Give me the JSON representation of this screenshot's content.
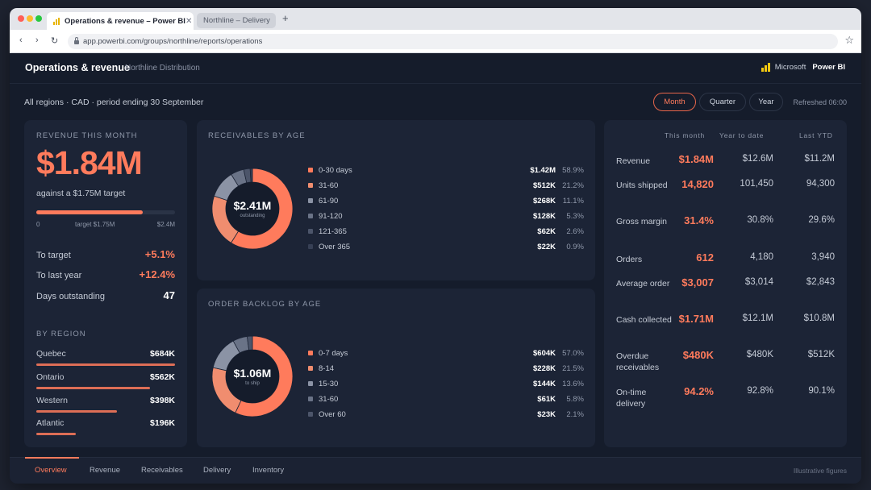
{
  "browser": {
    "tabs": [
      {
        "label": "Operations & revenue – Power BI",
        "active": true
      },
      {
        "label": "Northline – Delivery",
        "active": false
      }
    ],
    "new_tab": "+",
    "url": "app.powerbi.com/groups/northline/reports/operations"
  },
  "header": {
    "title": "Operations & revenue",
    "subtitle": "Northline Distribution",
    "brand_microsoft": "Microsoft",
    "brand_product": "Power BI"
  },
  "filters": {
    "context": "All regions · CAD · period ending 30 September",
    "periods": [
      "Month",
      "Quarter",
      "Year"
    ],
    "selected_period": "Month",
    "refreshed": "Refreshed 06:00"
  },
  "revenue_card": {
    "label": "Revenue this month",
    "value": "$1.84M",
    "target_text": "against a $1.75M target",
    "progress_fraction": 0.767,
    "scale_min": "0",
    "scale_target": "target $1.75M",
    "scale_max": "$2.4M",
    "stats": [
      {
        "label": "To target",
        "value": "+5.1%"
      },
      {
        "label": "To last year",
        "value": "+12.4%"
      },
      {
        "label": "Days outstanding",
        "value": "47"
      }
    ],
    "region_label": "By region",
    "regions": [
      {
        "name": "Quebec",
        "value": "$684K",
        "amount": 684
      },
      {
        "name": "Ontario",
        "value": "$562K",
        "amount": 562
      },
      {
        "name": "Western",
        "value": "$398K",
        "amount": 398
      },
      {
        "name": "Atlantic",
        "value": "$196K",
        "amount": 196
      }
    ]
  },
  "receivables": {
    "label": "Receivables by age",
    "center_value": "$2.41M",
    "center_caption": "outstanding",
    "rows": [
      {
        "label": "0-30 days",
        "amount": "$1.42M",
        "pct": "58.9%",
        "share": 58.9,
        "color": "#ff7b5c"
      },
      {
        "label": "31-60",
        "amount": "$512K",
        "pct": "21.2%",
        "share": 21.2,
        "color": "#f08d6f"
      },
      {
        "label": "61-90",
        "amount": "$268K",
        "pct": "11.1%",
        "share": 11.1,
        "color": "#8b93a5"
      },
      {
        "label": "91-120",
        "amount": "$128K",
        "pct": "5.3%",
        "share": 5.3,
        "color": "#6a7387"
      },
      {
        "label": "121-365",
        "amount": "$62K",
        "pct": "2.6%",
        "share": 2.6,
        "color": "#4c556a"
      },
      {
        "label": "Over 365",
        "amount": "$22K",
        "pct": "0.9%",
        "share": 0.9,
        "color": "#374055"
      }
    ]
  },
  "backlog": {
    "label": "Order backlog by age",
    "center_value": "$1.06M",
    "center_caption": "to ship",
    "rows": [
      {
        "label": "0-7 days",
        "amount": "$604K",
        "pct": "57.0%",
        "share": 57.0,
        "color": "#ff7b5c"
      },
      {
        "label": "8-14",
        "amount": "$228K",
        "pct": "21.5%",
        "share": 21.5,
        "color": "#f08d6f"
      },
      {
        "label": "15-30",
        "amount": "$144K",
        "pct": "13.6%",
        "share": 13.6,
        "color": "#8b93a5"
      },
      {
        "label": "31-60",
        "amount": "$61K",
        "pct": "5.8%",
        "share": 5.8,
        "color": "#6a7387"
      },
      {
        "label": "Over 60",
        "amount": "$23K",
        "pct": "2.1%",
        "share": 2.1,
        "color": "#4c556a"
      }
    ]
  },
  "comparison": {
    "headers": [
      "This month",
      "Year to date",
      "Last YTD"
    ],
    "rows": [
      {
        "label": "Revenue",
        "cur": "$1.84M",
        "ytd": "$12.6M",
        "last": "$11.2M"
      },
      {
        "label": "Units shipped",
        "cur": "14,820",
        "ytd": "101,450",
        "last": "94,300"
      },
      {
        "label": "Gross margin",
        "cur": "31.4%",
        "ytd": "30.8%",
        "last": "29.6%"
      },
      {
        "label": "Orders",
        "cur": "612",
        "ytd": "4,180",
        "last": "3,940"
      },
      {
        "label": "Average order",
        "cur": "$3,007",
        "ytd": "$3,014",
        "last": "$2,843"
      },
      {
        "label": "Cash collected",
        "cur": "$1.71M",
        "ytd": "$12.1M",
        "last": "$10.8M"
      },
      {
        "label": "Overdue receivables",
        "cur": "$480K",
        "ytd": "$480K",
        "last": "$512K"
      },
      {
        "label": "On-time delivery",
        "cur": "94.2%",
        "ytd": "92.8%",
        "last": "90.1%"
      }
    ]
  },
  "page_tabs": [
    "Overview",
    "Revenue",
    "Receivables",
    "Delivery",
    "Inventory"
  ],
  "active_page": "Overview",
  "footnote": "Illustrative figures",
  "colors": {
    "accent": "#ff7b5c",
    "background": "#151c2b",
    "card": "#1c2436"
  }
}
